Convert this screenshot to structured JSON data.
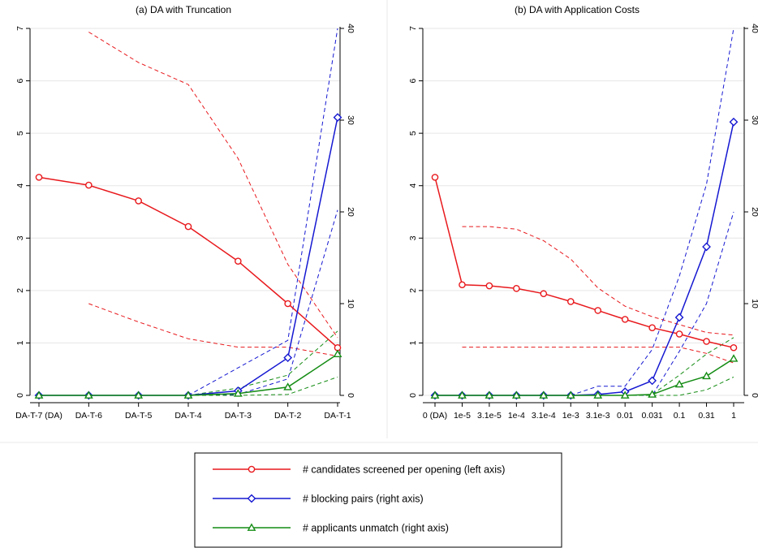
{
  "legend": {
    "entries": [
      {
        "label": "# candidates screened per opening (left axis)",
        "color": "#e8191d",
        "marker": "circle"
      },
      {
        "label": "# blocking pairs (right axis)",
        "color": "#1518d1",
        "marker": "diamond"
      },
      {
        "label": "# applicants unmatch (right axis)",
        "color": "#148c14",
        "marker": "triangle"
      }
    ]
  },
  "chart_data": [
    {
      "type": "line",
      "title": "(a) DA with Truncation",
      "categories": [
        "DA-T-7 (DA)",
        "DA-T-6",
        "DA-T-5",
        "DA-T-4",
        "DA-T-3",
        "DA-T-2",
        "DA-T-1"
      ],
      "y_left": {
        "range": [
          0,
          7
        ],
        "ticks": [
          0,
          1,
          2,
          3,
          4,
          5,
          6,
          7
        ]
      },
      "y_right": {
        "range": [
          0,
          40
        ],
        "ticks": [
          0,
          10,
          20,
          30,
          40
        ]
      },
      "grid": true,
      "series": [
        {
          "name": "# candidates screened per opening (left axis)",
          "axis": "left",
          "color": "#e8191d",
          "marker": "circle",
          "values": [
            4.16,
            4.01,
            3.71,
            3.22,
            2.56,
            1.75,
            0.91
          ]
        },
        {
          "name": "# blocking pairs (right axis)",
          "axis": "right",
          "color": "#1518d1",
          "marker": "diamond",
          "values": [
            0,
            0,
            0,
            0,
            0.5,
            4.1,
            30.3
          ]
        },
        {
          "name": "# applicants unmatch (right axis)",
          "axis": "right",
          "color": "#148c14",
          "marker": "triangle",
          "values": [
            0,
            0,
            0,
            0,
            0.2,
            0.9,
            4.5
          ]
        }
      ],
      "bands": [
        {
          "series": "# candidates screened per opening (left axis)",
          "axis": "left",
          "color": "#e8191d",
          "start": 1,
          "upper": [
            6.93,
            6.35,
            5.93,
            4.52,
            2.5,
            1.1
          ],
          "lower": [
            1.75,
            1.4,
            1.08,
            0.92,
            0.92,
            0.75
          ]
        },
        {
          "series": "# blocking pairs (right axis)",
          "axis": "right",
          "color": "#1518d1",
          "start": 3,
          "upper": [
            0,
            3.0,
            6.0,
            40.0
          ],
          "lower": [
            0,
            0.1,
            1.8,
            20.2
          ]
        },
        {
          "series": "# applicants unmatch (right axis)",
          "axis": "right",
          "color": "#148c14",
          "start": 3,
          "upper": [
            0,
            0.8,
            2.2,
            7.0
          ],
          "lower": [
            0,
            0,
            0.1,
            2.0
          ]
        }
      ]
    },
    {
      "type": "line",
      "title": "(b) DA with Application Costs",
      "categories": [
        "0 (DA)",
        "1e-5",
        "3.1e-5",
        "1e-4",
        "3.1e-4",
        "1e-3",
        "3.1e-3",
        "0.01",
        "0.031",
        "0.1",
        "0.31",
        "1"
      ],
      "y_left": {
        "range": [
          0,
          7
        ],
        "ticks": [
          0,
          1,
          2,
          3,
          4,
          5,
          6,
          7
        ]
      },
      "y_right": {
        "range": [
          0,
          40
        ],
        "ticks": [
          0,
          10,
          20,
          30,
          40
        ]
      },
      "grid": true,
      "series": [
        {
          "name": "# candidates screened per opening (left axis)",
          "axis": "left",
          "color": "#e8191d",
          "marker": "circle",
          "values": [
            4.16,
            2.11,
            2.09,
            2.04,
            1.94,
            1.79,
            1.62,
            1.45,
            1.29,
            1.17,
            1.03,
            0.91
          ]
        },
        {
          "name": "# blocking pairs (right axis)",
          "axis": "right",
          "color": "#1518d1",
          "marker": "diamond",
          "values": [
            0,
            0,
            0,
            0,
            0,
            0,
            0.1,
            0.4,
            1.6,
            8.5,
            16.2,
            29.8
          ]
        },
        {
          "name": "# applicants unmatch (right axis)",
          "axis": "right",
          "color": "#148c14",
          "marker": "triangle",
          "values": [
            0,
            0,
            0,
            0,
            0,
            0,
            0,
            0,
            0.1,
            1.2,
            2.1,
            4.0
          ]
        }
      ],
      "bands": [
        {
          "series": "# candidates screened per opening (left axis)",
          "axis": "left",
          "color": "#e8191d",
          "start": 1,
          "upper": [
            3.22,
            3.22,
            3.17,
            2.95,
            2.6,
            2.05,
            1.7,
            1.5,
            1.35,
            1.2,
            1.15
          ],
          "lower": [
            0.92,
            0.92,
            0.92,
            0.92,
            0.92,
            0.92,
            0.92,
            0.92,
            0.92,
            0.8,
            0.62
          ]
        },
        {
          "series": "# blocking pairs (right axis)",
          "axis": "right",
          "color": "#1518d1",
          "start": 5,
          "upper": [
            0,
            1.0,
            1.0,
            5.0,
            13.0,
            23.0,
            40.0
          ],
          "lower": [
            0,
            0,
            0,
            0,
            4.8,
            10.0,
            20.0
          ]
        },
        {
          "series": "# applicants unmatch (right axis)",
          "axis": "right",
          "color": "#148c14",
          "start": 7,
          "upper": [
            0,
            0.1,
            2.2,
            4.5,
            6.3
          ],
          "lower": [
            0,
            0,
            0,
            0.6,
            2.0
          ]
        }
      ]
    }
  ]
}
